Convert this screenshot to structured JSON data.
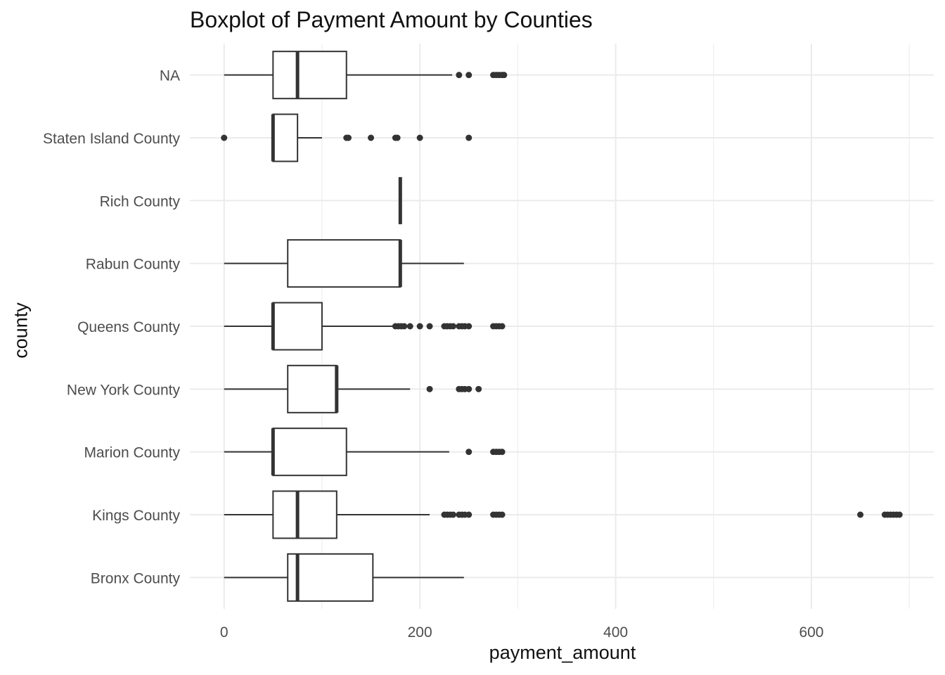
{
  "chart_data": {
    "type": "boxplot",
    "orientation": "horizontal",
    "title": "Boxplot of Payment Amount by Counties",
    "xlabel": "payment_amount",
    "ylabel": "county",
    "xlim": [
      -35,
      725
    ],
    "x_ticks": [
      0,
      200,
      400,
      600
    ],
    "grid": true,
    "colors": {
      "box_stroke": "#333333",
      "grid": "#ebebeb",
      "outlier": "#333333",
      "tick_text": "#4d4d4d"
    },
    "categories": [
      "Bronx County",
      "Kings County",
      "Marion County",
      "New York County",
      "Queens County",
      "Rabun County",
      "Rich County",
      "Staten Island County",
      "NA"
    ],
    "boxes": [
      {
        "category": "Bronx County",
        "lower_whisker": 0,
        "q1": 65,
        "median": 75,
        "q3": 152,
        "upper_whisker": 245,
        "outliers": []
      },
      {
        "category": "Kings County",
        "lower_whisker": 0,
        "q1": 50,
        "median": 75,
        "q3": 115,
        "upper_whisker": 210,
        "outliers": [
          225,
          228,
          231,
          234,
          240,
          243,
          246,
          250,
          275,
          278,
          281,
          284,
          650,
          675,
          678,
          681,
          684,
          687,
          690
        ]
      },
      {
        "category": "Marion County",
        "lower_whisker": 0,
        "q1": 50,
        "median": 50,
        "q3": 125,
        "upper_whisker": 230,
        "outliers": [
          250,
          275,
          278,
          281,
          284
        ]
      },
      {
        "category": "New York County",
        "lower_whisker": 0,
        "q1": 65,
        "median": 115,
        "q3": 115,
        "upper_whisker": 190,
        "outliers": [
          210,
          240,
          243,
          246,
          250,
          260
        ]
      },
      {
        "category": "Queens County",
        "lower_whisker": 0,
        "q1": 50,
        "median": 50,
        "q3": 100,
        "upper_whisker": 175,
        "outliers": [
          175,
          178,
          181,
          184,
          190,
          200,
          210,
          225,
          228,
          231,
          234,
          240,
          243,
          246,
          250,
          275,
          278,
          281,
          284
        ]
      },
      {
        "category": "Rabun County",
        "lower_whisker": 0,
        "q1": 65,
        "median": 180,
        "q3": 180,
        "upper_whisker": 245,
        "outliers": []
      },
      {
        "category": "Rich County",
        "lower_whisker": 180,
        "q1": 180,
        "median": 180,
        "q3": 180,
        "upper_whisker": 180,
        "outliers": []
      },
      {
        "category": "Staten Island County",
        "lower_whisker": 50,
        "q1": 50,
        "median": 50,
        "q3": 75,
        "upper_whisker": 100,
        "outliers": [
          0,
          125,
          127,
          150,
          175,
          177,
          200,
          250
        ]
      },
      {
        "category": "NA",
        "lower_whisker": 0,
        "q1": 50,
        "median": 75,
        "q3": 125,
        "upper_whisker": 233,
        "outliers": [
          240,
          250,
          275,
          278,
          281,
          284,
          286
        ]
      }
    ]
  }
}
